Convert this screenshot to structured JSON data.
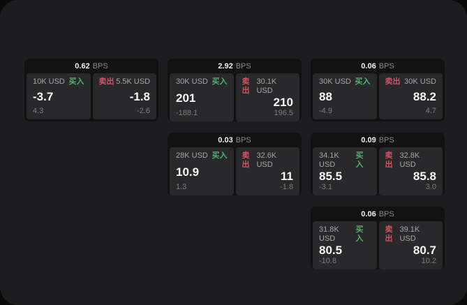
{
  "labels": {
    "bps_unit": "BPS",
    "buy": "买入",
    "sell": "卖出"
  },
  "colors": {
    "buy": "#4db36b",
    "sell": "#cd5468",
    "panel_bg": "#1d1d1f",
    "card_bg": "#121213",
    "pane_bg": "#29292b"
  },
  "cards": [
    {
      "col": 1,
      "row": 1,
      "bps": "0.62",
      "buy": {
        "amount": "10K USD",
        "price": "-3.7",
        "delta": "4.3"
      },
      "sell": {
        "amount": "5.5K USD",
        "price": "-1.8",
        "delta": "-2.6"
      }
    },
    {
      "col": 2,
      "row": 1,
      "bps": "2.92",
      "buy": {
        "amount": "30K USD",
        "price": "201",
        "delta": "-188.1"
      },
      "sell": {
        "amount": "30.1K USD",
        "price": "210",
        "delta": "196.5"
      }
    },
    {
      "col": 3,
      "row": 1,
      "bps": "0.06",
      "buy": {
        "amount": "30K USD",
        "price": "88",
        "delta": "-4.9"
      },
      "sell": {
        "amount": "30K USD",
        "price": "88.2",
        "delta": "4.7"
      }
    },
    {
      "col": 2,
      "row": 2,
      "bps": "0.03",
      "buy": {
        "amount": "28K USD",
        "price": "10.9",
        "delta": "1.3"
      },
      "sell": {
        "amount": "32.6K USD",
        "price": "11",
        "delta": "-1.8"
      }
    },
    {
      "col": 3,
      "row": 2,
      "bps": "0.09",
      "buy": {
        "amount": "34.1K USD",
        "price": "85.5",
        "delta": "-3.1"
      },
      "sell": {
        "amount": "32.8K USD",
        "price": "85.8",
        "delta": "3.0"
      }
    },
    {
      "col": 3,
      "row": 3,
      "bps": "0.06",
      "buy": {
        "amount": "31.8K USD",
        "price": "80.5",
        "delta": "-10.8"
      },
      "sell": {
        "amount": "39.1K USD",
        "price": "80.7",
        "delta": "10.2"
      }
    }
  ]
}
